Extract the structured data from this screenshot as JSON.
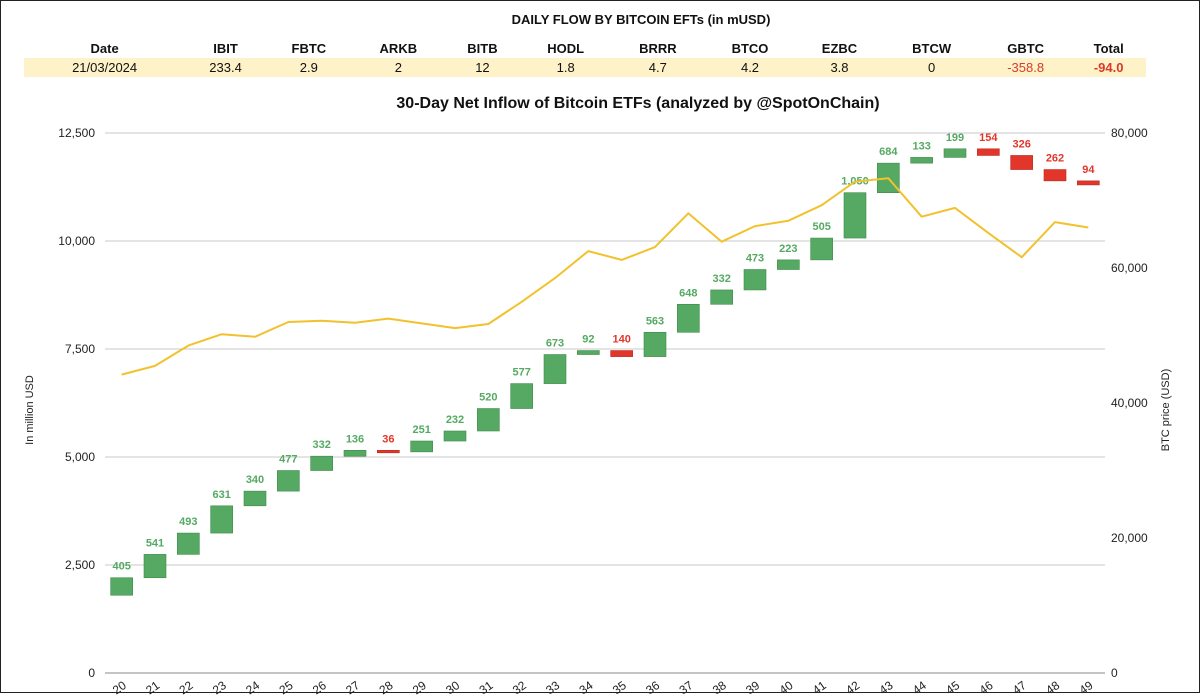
{
  "table": {
    "title": "DAILY FLOW BY BITCOIN EFTs (in mUSD)",
    "headers": [
      "Date",
      "IBIT",
      "FBTC",
      "ARKB",
      "BITB",
      "HODL",
      "BRRR",
      "BTCO",
      "EZBC",
      "BTCW",
      "GBTC",
      "Total"
    ],
    "row": [
      "21/03/2024",
      "233.4",
      "2.9",
      "2",
      "12",
      "1.8",
      "4.7",
      "4.2",
      "3.8",
      "0",
      "-358.8",
      "-94.0"
    ]
  },
  "chart_data": {
    "type": "waterfall",
    "title": "30-Day Net Inflow of Bitcoin ETFs (analyzed by @SpotOnChain)",
    "ylabel": "In million USD",
    "y2label": "BTC price (USD)",
    "ylim": [
      0,
      12500
    ],
    "y2lim": [
      0,
      80000
    ],
    "yticks": [
      "0",
      "2,500",
      "5,000",
      "7,500",
      "10,000",
      "12,500"
    ],
    "y2ticks": [
      "0",
      "20,000",
      "40,000",
      "60,000",
      "80,000"
    ],
    "grid": true,
    "categories": [
      "20",
      "21",
      "22",
      "23",
      "24",
      "25",
      "26",
      "27",
      "28",
      "29",
      "30",
      "31",
      "32",
      "33",
      "34",
      "35",
      "36",
      "37",
      "38",
      "39",
      "40",
      "41",
      "42",
      "43",
      "44",
      "45",
      "46",
      "47",
      "48",
      "49"
    ],
    "labels": [
      "405",
      "541",
      "493",
      "631",
      "340",
      "477",
      "332",
      "136",
      "36",
      "251",
      "232",
      "520",
      "577",
      "673",
      "92",
      "140",
      "563",
      "648",
      "332",
      "473",
      "223",
      "505",
      "1,050",
      "684",
      "133",
      "199",
      "154",
      "326",
      "262",
      "94"
    ],
    "flows": [
      405,
      541,
      493,
      631,
      340,
      477,
      332,
      136,
      -36,
      251,
      232,
      520,
      577,
      673,
      92,
      -140,
      563,
      648,
      332,
      473,
      223,
      505,
      1050,
      684,
      133,
      199,
      -154,
      -326,
      -262,
      -94
    ],
    "start": 1800,
    "btc_price": [
      44200,
      45500,
      48500,
      50200,
      49800,
      52000,
      52200,
      51900,
      52500,
      51800,
      51100,
      51700,
      55000,
      58500,
      62500,
      61200,
      63100,
      68100,
      63900,
      66200,
      67000,
      69300,
      72800,
      73300,
      67600,
      68900,
      65200,
      61600,
      66800,
      66000
    ],
    "colors": {
      "up": "#55a962",
      "down": "#e2362a",
      "price": "#f2c12e",
      "grid": "#c9c9c9"
    }
  }
}
